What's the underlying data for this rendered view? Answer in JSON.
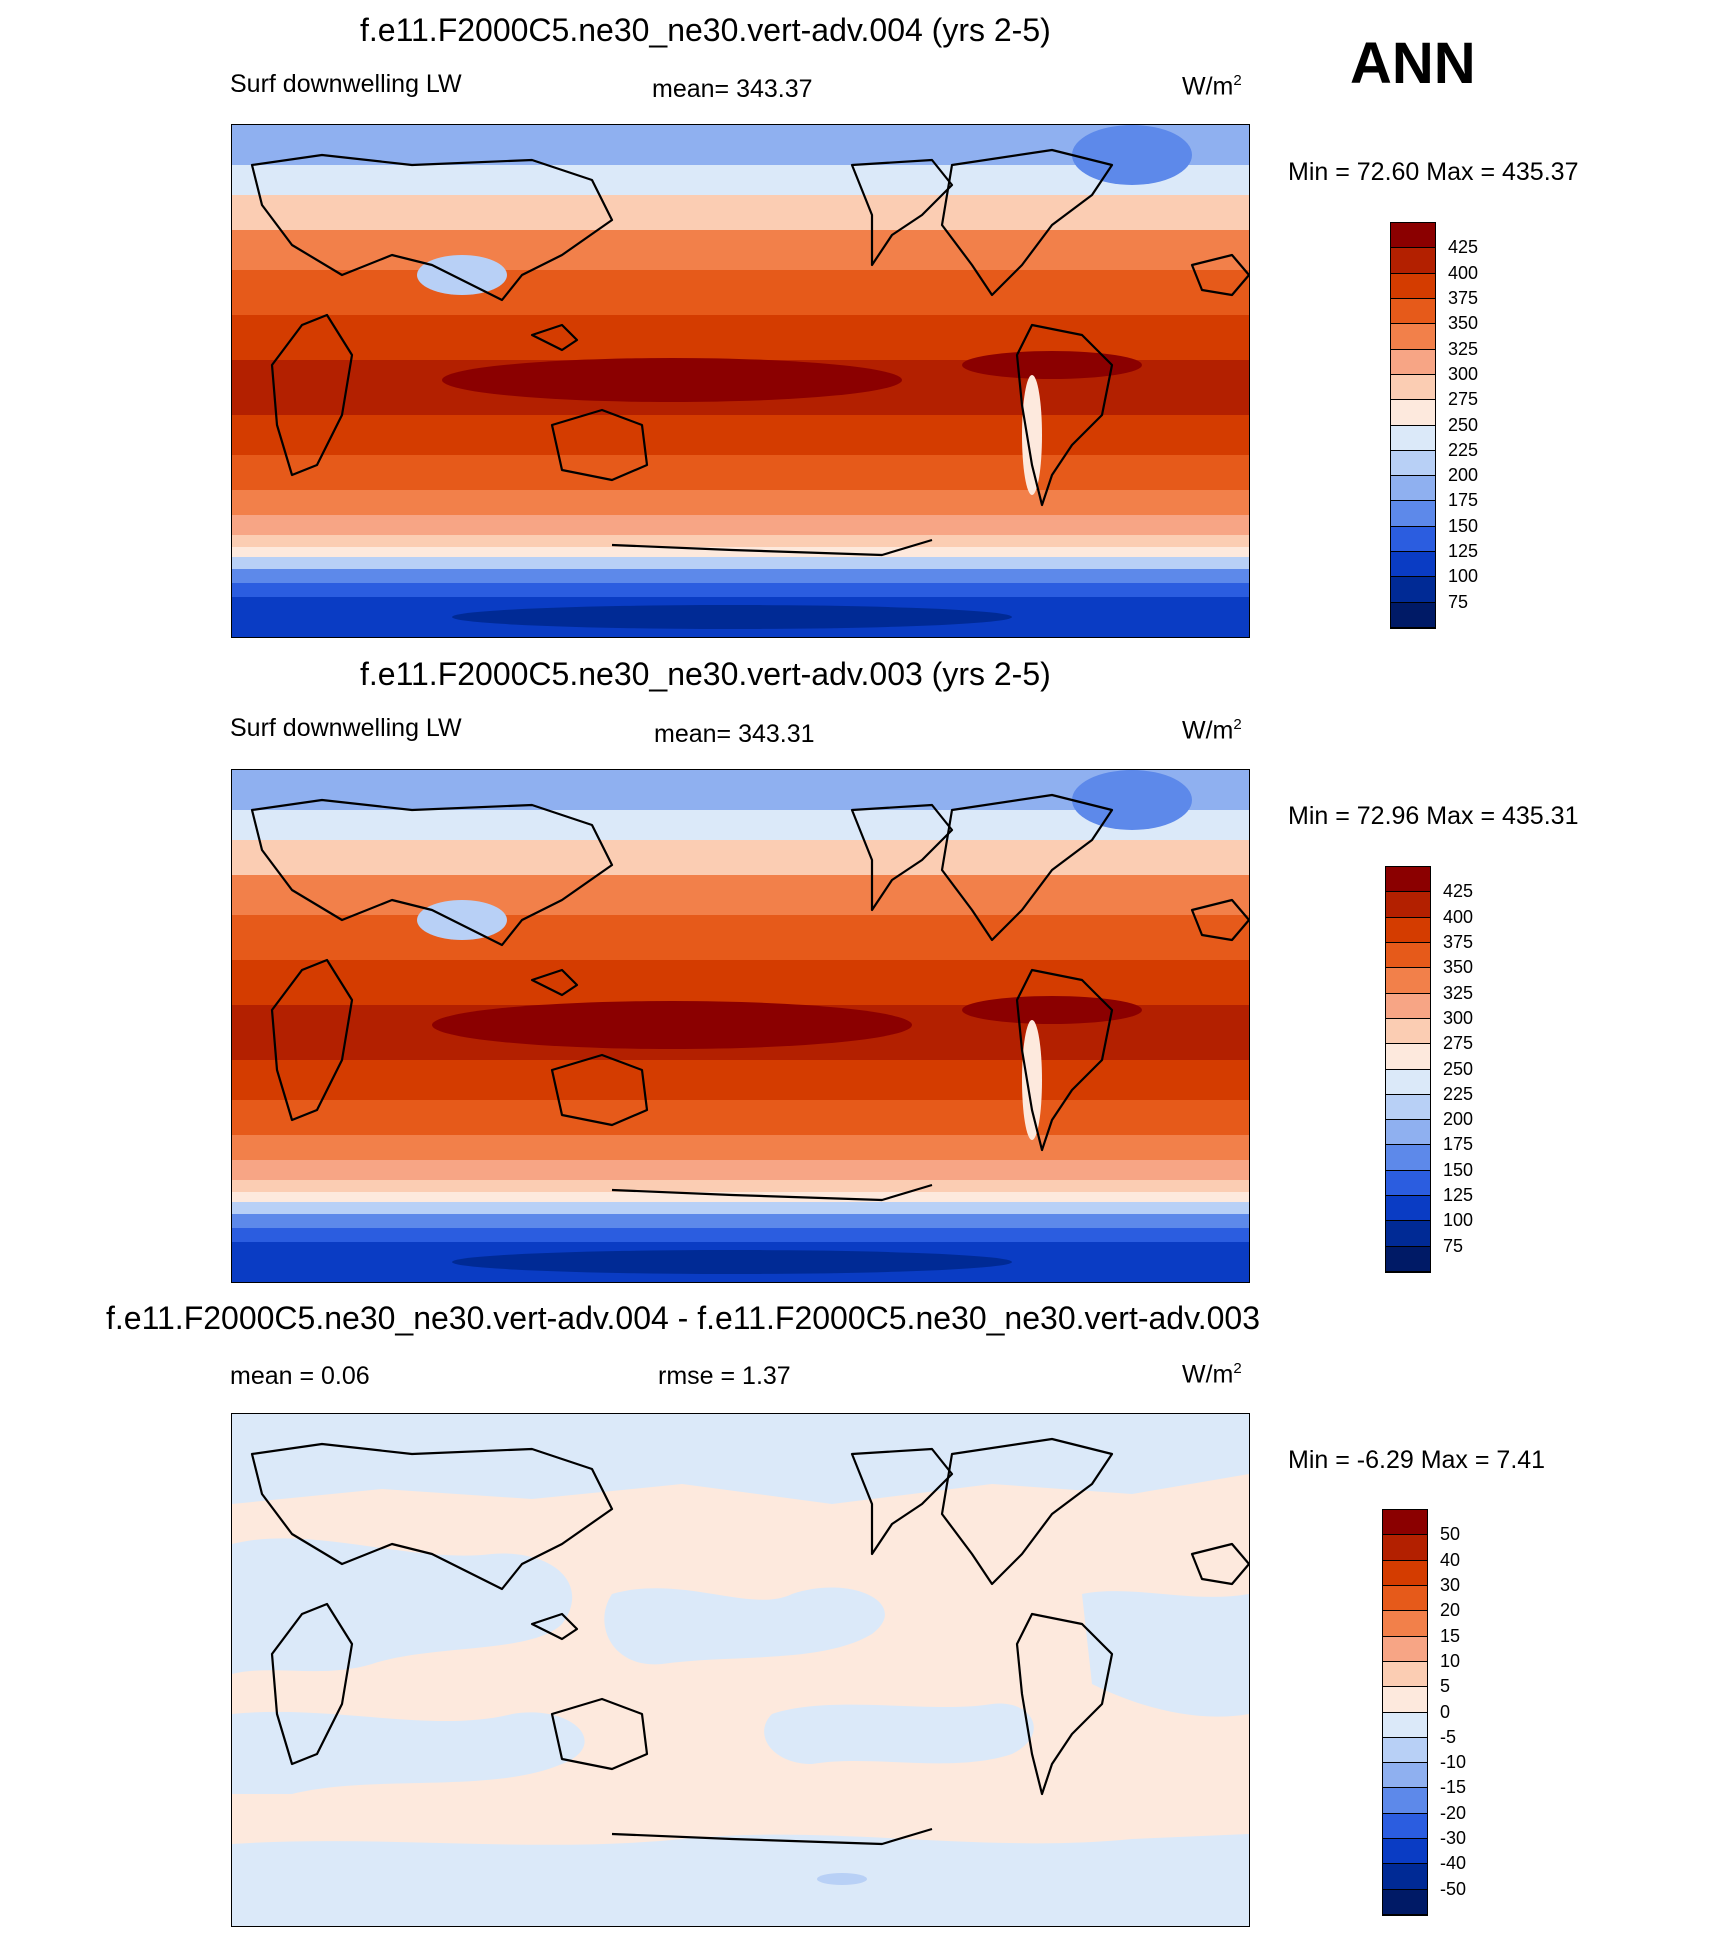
{
  "annual_label": "ANN",
  "panels": [
    {
      "id": "p1",
      "title": "f.e11.F2000C5.ne30_ne30.vert-adv.004 (yrs 2-5)",
      "variable": "Surf downwelling LW",
      "stat": "mean= 343.37",
      "units": "W/m",
      "units_exp": "2",
      "minmax": "Min =  72.60 Max = 435.37",
      "colorbar_labels": [
        "425",
        "400",
        "375",
        "350",
        "325",
        "300",
        "275",
        "250",
        "225",
        "200",
        "175",
        "150",
        "125",
        "100",
        "75"
      ],
      "colorbar_colors": [
        "#8b0000",
        "#b32000",
        "#d43c00",
        "#e65a1a",
        "#f2804a",
        "#f7a585",
        "#fbcdb3",
        "#fde9dd",
        "#dbe9f9",
        "#b8d0f6",
        "#8fb0f0",
        "#5d89ea",
        "#2b5de0",
        "#0a3cc4",
        "#002a95",
        "#001a66"
      ],
      "colorbar_note": "top to bottom"
    },
    {
      "id": "p2",
      "title": "f.e11.F2000C5.ne30_ne30.vert-adv.003 (yrs 2-5)",
      "variable": "Surf downwelling LW",
      "stat": "mean= 343.31",
      "units": "W/m",
      "units_exp": "2",
      "minmax": "Min =  72.96 Max = 435.31",
      "colorbar_labels": [
        "425",
        "400",
        "375",
        "350",
        "325",
        "300",
        "275",
        "250",
        "225",
        "200",
        "175",
        "150",
        "125",
        "100",
        "75"
      ]
    },
    {
      "id": "p3",
      "title": "f.e11.F2000C5.ne30_ne30.vert-adv.004 - f.e11.F2000C5.ne30_ne30.vert-adv.003",
      "variable": "",
      "stat_mean": "mean =   0.06",
      "stat_rmse": "rmse =   1.37",
      "units": "W/m",
      "units_exp": "2",
      "minmax": "Min =  -6.29 Max =   7.41",
      "colorbar_labels": [
        "50",
        "40",
        "30",
        "20",
        "15",
        "10",
        "5",
        "0",
        "-5",
        "-10",
        "-15",
        "-20",
        "-30",
        "-40",
        "-50"
      ],
      "colorbar_colors": [
        "#8b0000",
        "#b32000",
        "#d43c00",
        "#e65a1a",
        "#f2804a",
        "#f7a585",
        "#fbcdb3",
        "#fde9dd",
        "#dbe9f9",
        "#b8d0f6",
        "#8fb0f0",
        "#5d89ea",
        "#2b5de0",
        "#0a3cc4",
        "#002a95",
        "#001a66"
      ]
    }
  ],
  "map_colors": {
    "ocean_tropics": "#8b0000",
    "tropics": "#b32000",
    "subtropics": "#d43c00",
    "midlat": "#e65a1a",
    "midlat2": "#f2804a",
    "midlat3": "#f7a585",
    "polar_edge": "#fbcdb3",
    "arctic": "#dbe9f9",
    "arctic2": "#8fb0f0",
    "antarctic1": "#5d89ea",
    "antarctic2": "#2b5de0",
    "antarctic3": "#0a3cc4",
    "diff_pos": "#fde9dd",
    "diff_neg": "#dbe9f9"
  }
}
